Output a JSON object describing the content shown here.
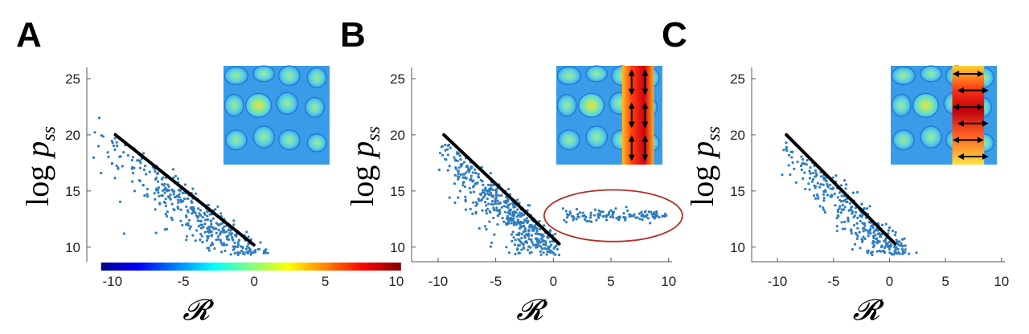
{
  "figure": {
    "colors": {
      "scatter": "#2f7dbf",
      "fit": "#000000",
      "ellipse": "#b03028",
      "axis": "#555555"
    },
    "colormap": [
      "#00008f",
      "#0000ff",
      "#0080ff",
      "#00ffff",
      "#80ff80",
      "#ffff00",
      "#ff8000",
      "#ff0000",
      "#800000"
    ]
  },
  "chart_data": [
    {
      "panel": "A",
      "type": "scatter",
      "xlabel": "𝓡",
      "ylabel_main": "log",
      "ylabel_var": "p",
      "ylabel_sub": "ss",
      "xlim": [
        -12,
        5
      ],
      "ylim": [
        8.7,
        26
      ],
      "xticks": [],
      "yticks": [
        10,
        15,
        20,
        25
      ],
      "fit_line": {
        "x": [
          -10,
          -0.3
        ],
        "y": [
          20,
          10.2
        ]
      },
      "cloud": {
        "x_range": [
          -12,
          1
        ],
        "slope": -1.0,
        "intercept": 10.0,
        "spread": 2.2,
        "count": 520
      },
      "colorbar": {
        "label_ticks": [
          -10,
          -5,
          0,
          5,
          10
        ],
        "range": [
          -11,
          10
        ]
      },
      "inset": {
        "mode": "plain",
        "arrows": []
      }
    },
    {
      "panel": "B",
      "type": "scatter",
      "xlabel": "𝓡",
      "ylabel_main": "log",
      "ylabel_var": "p",
      "ylabel_sub": "ss",
      "xlim": [
        -12.3,
        10.3
      ],
      "ylim": [
        8.7,
        26
      ],
      "xticks": [
        -10,
        -5,
        0,
        5,
        10
      ],
      "yticks": [
        10,
        15,
        20,
        25
      ],
      "fit_line": {
        "x": [
          -9.5,
          0.5
        ],
        "y": [
          20,
          10.3
        ]
      },
      "cloud": {
        "x_range": [
          -10,
          0.5
        ],
        "slope": -0.95,
        "intercept": 10.5,
        "spread": 2.1,
        "count": 560
      },
      "plateau": {
        "x_range": [
          0.8,
          9.8
        ],
        "y": 12.8,
        "spread": 0.25,
        "count": 120
      },
      "ellipse": {
        "cx": 5.2,
        "cy": 12.8,
        "rx": 6.0,
        "ry": 2.3
      },
      "inset": {
        "mode": "column-vertical",
        "arrows": [
          "up-down",
          "up-down",
          "up-down",
          "up-down",
          "up-down",
          "up-down"
        ]
      }
    },
    {
      "panel": "C",
      "type": "scatter",
      "xlabel": "𝓡",
      "ylabel_main": "log",
      "ylabel_var": "p",
      "ylabel_sub": "ss",
      "xlim": [
        -12.3,
        10.3
      ],
      "ylim": [
        8.7,
        26
      ],
      "xticks": [
        -10,
        -5,
        0,
        5,
        10
      ],
      "yticks": [
        10,
        15,
        20,
        25
      ],
      "fit_line": {
        "x": [
          -9.2,
          0.5
        ],
        "y": [
          20,
          10.3
        ]
      },
      "cloud": {
        "x_range": [
          -10,
          4
        ],
        "slope": -0.95,
        "intercept": 11.0,
        "spread": 2.0,
        "count": 560
      },
      "inset": {
        "mode": "column-horizontal",
        "arrows": [
          "left-right",
          "left-right",
          "left-right",
          "left-right",
          "left-right",
          "left-right"
        ]
      }
    }
  ]
}
